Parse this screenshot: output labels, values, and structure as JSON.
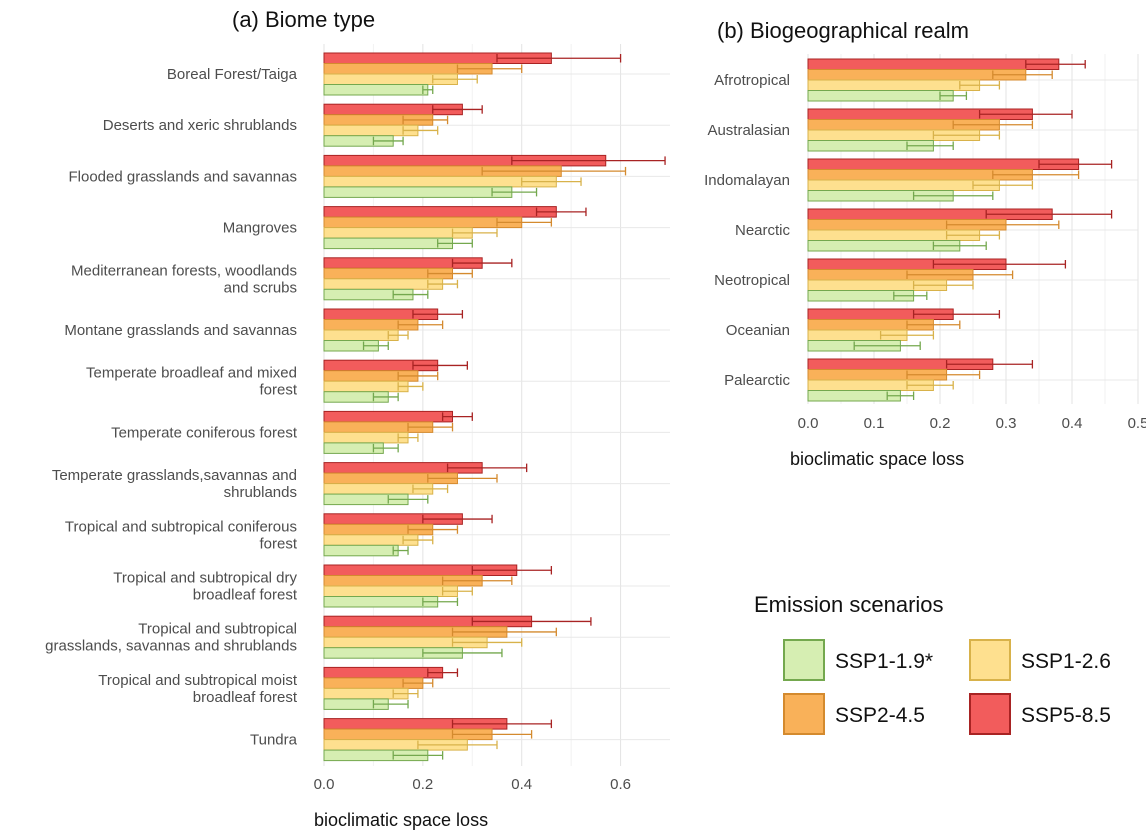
{
  "legend": {
    "title": "Emission scenarios",
    "items": [
      {
        "label": "SSP1-1.9*",
        "fill": "#d6eeb2",
        "stroke": "#74a84e"
      },
      {
        "label": "SSP1-2.6",
        "fill": "#fee08f",
        "stroke": "#d8b24a"
      },
      {
        "label": "SSP2-4.5",
        "fill": "#f9b159",
        "stroke": "#d48a2e"
      },
      {
        "label": "SSP5-8.5",
        "fill": "#f25c5c",
        "stroke": "#a82323"
      }
    ]
  },
  "chart_data": [
    {
      "type": "bar",
      "orientation": "horizontal",
      "title": "(a) Biome type",
      "xlabel": "bioclimatic space loss",
      "xlim": [
        0,
        0.7
      ],
      "xticks": [
        "0.0",
        "0.2",
        "0.4",
        "0.6"
      ],
      "grid": true,
      "categories": [
        [
          "Boreal Forest/Taiga"
        ],
        [
          "Deserts and xeric shrublands"
        ],
        [
          "Flooded grasslands and savannas"
        ],
        [
          "Mangroves"
        ],
        [
          "Mediterranean forests, woodlands",
          "and scrubs"
        ],
        [
          "Montane grasslands and savannas"
        ],
        [
          "Temperate broadleaf and mixed",
          "forest"
        ],
        [
          "Temperate coniferous forest"
        ],
        [
          "Temperate grasslands,savannas and",
          "shrublands"
        ],
        [
          "Tropical and subtropical coniferous",
          "forest"
        ],
        [
          "Tropical and subtropical dry",
          "broadleaf forest"
        ],
        [
          "Tropical and subtropical",
          "grasslands, savannas and shrublands"
        ],
        [
          "Tropical and subtropical moist",
          "broadleaf forest"
        ],
        [
          "Tundra"
        ]
      ],
      "series": [
        {
          "name": "SSP5-8.5",
          "values": [
            0.46,
            0.28,
            0.57,
            0.47,
            0.32,
            0.23,
            0.23,
            0.26,
            0.32,
            0.28,
            0.39,
            0.42,
            0.24,
            0.37
          ],
          "err": [
            [
              0.35,
              0.6
            ],
            [
              0.22,
              0.32
            ],
            [
              0.38,
              0.69
            ],
            [
              0.43,
              0.53
            ],
            [
              0.26,
              0.38
            ],
            [
              0.18,
              0.28
            ],
            [
              0.18,
              0.29
            ],
            [
              0.24,
              0.3
            ],
            [
              0.25,
              0.41
            ],
            [
              0.2,
              0.34
            ],
            [
              0.3,
              0.46
            ],
            [
              0.3,
              0.54
            ],
            [
              0.21,
              0.27
            ],
            [
              0.26,
              0.46
            ]
          ]
        },
        {
          "name": "SSP2-4.5",
          "values": [
            0.34,
            0.22,
            0.48,
            0.4,
            0.26,
            0.19,
            0.19,
            0.22,
            0.27,
            0.22,
            0.32,
            0.37,
            0.2,
            0.34
          ],
          "err": [
            [
              0.27,
              0.4
            ],
            [
              0.16,
              0.25
            ],
            [
              0.32,
              0.61
            ],
            [
              0.35,
              0.46
            ],
            [
              0.21,
              0.3
            ],
            [
              0.15,
              0.24
            ],
            [
              0.15,
              0.23
            ],
            [
              0.17,
              0.26
            ],
            [
              0.21,
              0.35
            ],
            [
              0.17,
              0.27
            ],
            [
              0.24,
              0.38
            ],
            [
              0.26,
              0.47
            ],
            [
              0.16,
              0.22
            ],
            [
              0.26,
              0.42
            ]
          ]
        },
        {
          "name": "SSP1-2.6",
          "values": [
            0.27,
            0.19,
            0.47,
            0.3,
            0.24,
            0.15,
            0.17,
            0.17,
            0.22,
            0.19,
            0.27,
            0.33,
            0.17,
            0.29
          ],
          "err": [
            [
              0.22,
              0.31
            ],
            [
              0.16,
              0.23
            ],
            [
              0.4,
              0.52
            ],
            [
              0.26,
              0.35
            ],
            [
              0.21,
              0.27
            ],
            [
              0.13,
              0.17
            ],
            [
              0.15,
              0.2
            ],
            [
              0.15,
              0.19
            ],
            [
              0.18,
              0.25
            ],
            [
              0.16,
              0.22
            ],
            [
              0.24,
              0.3
            ],
            [
              0.26,
              0.4
            ],
            [
              0.14,
              0.19
            ],
            [
              0.19,
              0.35
            ]
          ]
        },
        {
          "name": "SSP1-1.9*",
          "values": [
            0.21,
            0.14,
            0.38,
            0.26,
            0.18,
            0.11,
            0.13,
            0.12,
            0.17,
            0.15,
            0.23,
            0.28,
            0.13,
            0.21
          ],
          "err": [
            [
              0.2,
              0.22
            ],
            [
              0.1,
              0.16
            ],
            [
              0.34,
              0.43
            ],
            [
              0.23,
              0.3
            ],
            [
              0.14,
              0.21
            ],
            [
              0.08,
              0.13
            ],
            [
              0.1,
              0.15
            ],
            [
              0.1,
              0.15
            ],
            [
              0.13,
              0.21
            ],
            [
              0.14,
              0.17
            ],
            [
              0.2,
              0.27
            ],
            [
              0.2,
              0.36
            ],
            [
              0.1,
              0.17
            ],
            [
              0.14,
              0.24
            ]
          ]
        }
      ]
    },
    {
      "type": "bar",
      "orientation": "horizontal",
      "title": "(b) Biogeographical realm",
      "xlabel": "bioclimatic space loss",
      "xlim": [
        0,
        0.5
      ],
      "xticks": [
        "0.0",
        "0.1",
        "0.2",
        "0.3",
        "0.4",
        "0.5"
      ],
      "grid": true,
      "categories": [
        [
          "Afrotropical"
        ],
        [
          "Australasian"
        ],
        [
          "Indomalayan"
        ],
        [
          "Nearctic"
        ],
        [
          "Neotropical"
        ],
        [
          "Oceanian"
        ],
        [
          "Palearctic"
        ]
      ],
      "series": [
        {
          "name": "SSP5-8.5",
          "values": [
            0.38,
            0.34,
            0.41,
            0.37,
            0.3,
            0.22,
            0.28
          ],
          "err": [
            [
              0.33,
              0.42
            ],
            [
              0.26,
              0.4
            ],
            [
              0.35,
              0.46
            ],
            [
              0.27,
              0.46
            ],
            [
              0.19,
              0.39
            ],
            [
              0.16,
              0.29
            ],
            [
              0.21,
              0.34
            ]
          ]
        },
        {
          "name": "SSP2-4.5",
          "values": [
            0.33,
            0.29,
            0.34,
            0.3,
            0.25,
            0.19,
            0.21
          ],
          "err": [
            [
              0.28,
              0.37
            ],
            [
              0.22,
              0.34
            ],
            [
              0.28,
              0.41
            ],
            [
              0.21,
              0.38
            ],
            [
              0.15,
              0.31
            ],
            [
              0.15,
              0.23
            ],
            [
              0.15,
              0.26
            ]
          ]
        },
        {
          "name": "SSP1-2.6",
          "values": [
            0.26,
            0.26,
            0.29,
            0.26,
            0.21,
            0.15,
            0.19
          ],
          "err": [
            [
              0.23,
              0.29
            ],
            [
              0.19,
              0.29
            ],
            [
              0.25,
              0.34
            ],
            [
              0.21,
              0.29
            ],
            [
              0.16,
              0.25
            ],
            [
              0.11,
              0.19
            ],
            [
              0.15,
              0.22
            ]
          ]
        },
        {
          "name": "SSP1-1.9*",
          "values": [
            0.22,
            0.19,
            0.22,
            0.23,
            0.16,
            0.14,
            0.14
          ],
          "err": [
            [
              0.2,
              0.24
            ],
            [
              0.15,
              0.22
            ],
            [
              0.16,
              0.28
            ],
            [
              0.19,
              0.27
            ],
            [
              0.13,
              0.18
            ],
            [
              0.07,
              0.17
            ],
            [
              0.12,
              0.16
            ]
          ]
        }
      ]
    }
  ]
}
